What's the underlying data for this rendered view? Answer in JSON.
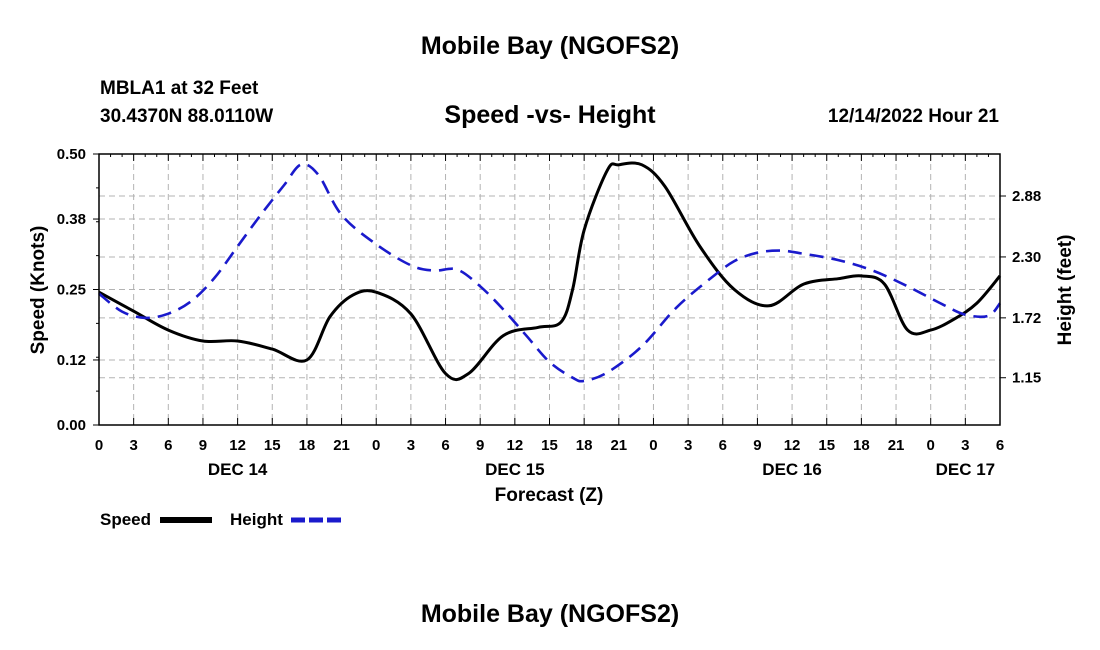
{
  "header": {
    "title": "Mobile Bay (NGOFS2)",
    "station": "MBLA1 at 32 Feet",
    "coords": "30.4370N  88.0110W",
    "subtitle": "Speed -vs- Height",
    "datetime": "12/14/2022 Hour 21"
  },
  "footer": {
    "title": "Mobile Bay (NGOFS2)"
  },
  "chart_data": {
    "type": "line",
    "title": "Speed -vs- Height",
    "xlabel": "Forecast (Z)",
    "ylabel": "Speed (Knots)",
    "y2label": "Height (feet)",
    "x_range_hours": [
      0,
      78
    ],
    "x_tick_labels": [
      "0",
      "3",
      "6",
      "9",
      "12",
      "15",
      "18",
      "21",
      "0",
      "3",
      "6",
      "9",
      "12",
      "15",
      "18",
      "21",
      "0",
      "3",
      "6",
      "9",
      "12",
      "15",
      "18",
      "21",
      "0",
      "3",
      "6"
    ],
    "date_labels": [
      {
        "label": "DEC 14",
        "hour": 12
      },
      {
        "label": "DEC 15",
        "hour": 36
      },
      {
        "label": "DEC 16",
        "hour": 60
      },
      {
        "label": "DEC 17",
        "hour": 75
      }
    ],
    "ylim": [
      0,
      0.5
    ],
    "y_ticks": [
      0.0,
      0.12,
      0.25,
      0.38,
      0.5
    ],
    "y_tick_labels": [
      "0.00",
      "0.12",
      "0.25",
      "0.38",
      "0.50"
    ],
    "y2lim": [
      0.7,
      3.28
    ],
    "y2_ticks": [
      1.15,
      1.72,
      2.3,
      2.88
    ],
    "y2_tick_labels": [
      "1.15",
      "1.72",
      "2.30",
      "2.88"
    ],
    "legend": [
      {
        "name": "Speed",
        "color": "#000000",
        "style": "solid"
      },
      {
        "name": "Height",
        "color": "#1a1acc",
        "style": "dashed"
      }
    ],
    "series": [
      {
        "name": "Speed",
        "axis": "left",
        "color": "#000000",
        "x": [
          0,
          3,
          6,
          9,
          12,
          15,
          18,
          20,
          22,
          24,
          27,
          30,
          32,
          35,
          38,
          40,
          41,
          42,
          44,
          45,
          47,
          49,
          52,
          55,
          58,
          61,
          64,
          66,
          68,
          70,
          72,
          74,
          76,
          78
        ],
        "y": [
          0.245,
          0.21,
          0.175,
          0.155,
          0.155,
          0.14,
          0.12,
          0.2,
          0.24,
          0.245,
          0.205,
          0.095,
          0.095,
          0.165,
          0.18,
          0.19,
          0.25,
          0.36,
          0.47,
          0.48,
          0.48,
          0.44,
          0.33,
          0.25,
          0.22,
          0.26,
          0.27,
          0.275,
          0.26,
          0.175,
          0.175,
          0.195,
          0.225,
          0.275
        ]
      },
      {
        "name": "Height",
        "axis": "right",
        "color": "#1a1acc",
        "x": [
          0,
          2,
          4,
          6,
          8,
          10,
          12,
          14,
          16,
          17.5,
          19,
          21,
          24,
          27,
          29,
          31,
          33,
          35,
          37,
          39,
          41,
          42,
          44,
          47,
          50,
          53,
          55,
          57,
          59,
          61,
          64,
          67,
          70,
          73,
          75,
          77,
          78
        ],
        "y": [
          1.95,
          1.78,
          1.72,
          1.76,
          1.88,
          2.1,
          2.4,
          2.7,
          2.98,
          3.18,
          3.08,
          2.7,
          2.42,
          2.22,
          2.17,
          2.18,
          2.02,
          1.8,
          1.55,
          1.3,
          1.15,
          1.12,
          1.2,
          1.45,
          1.82,
          2.1,
          2.26,
          2.34,
          2.36,
          2.33,
          2.27,
          2.17,
          2.02,
          1.85,
          1.75,
          1.74,
          1.86
        ]
      }
    ]
  }
}
